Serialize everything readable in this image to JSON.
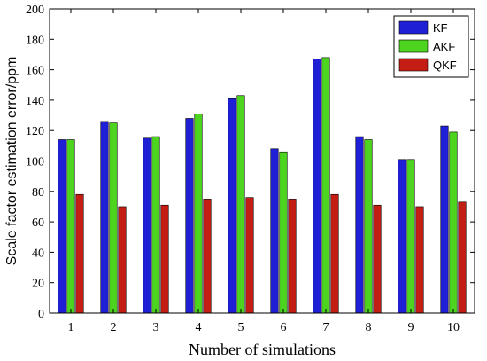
{
  "chart_data": {
    "type": "bar",
    "title": "",
    "xlabel": "Number of simulations",
    "ylabel": "Scale factor estimation error/ppm",
    "categories": [
      "1",
      "2",
      "3",
      "4",
      "5",
      "6",
      "7",
      "8",
      "9",
      "10"
    ],
    "ylim": [
      0,
      200
    ],
    "yticks": [
      0,
      20,
      40,
      60,
      80,
      100,
      120,
      140,
      160,
      180,
      200
    ],
    "grid": false,
    "legend_position": "top-right",
    "series": [
      {
        "name": "KF",
        "color": "#1f1fd6",
        "values": [
          114,
          126,
          115,
          128,
          141,
          108,
          167,
          116,
          101,
          123
        ]
      },
      {
        "name": "AKF",
        "color": "#4cd41e",
        "values": [
          114,
          125,
          116,
          131,
          143,
          106,
          168,
          114,
          101,
          119
        ]
      },
      {
        "name": "QKF",
        "color": "#c41e14",
        "values": [
          78,
          70,
          71,
          75,
          76,
          75,
          78,
          71,
          70,
          73
        ]
      }
    ]
  }
}
